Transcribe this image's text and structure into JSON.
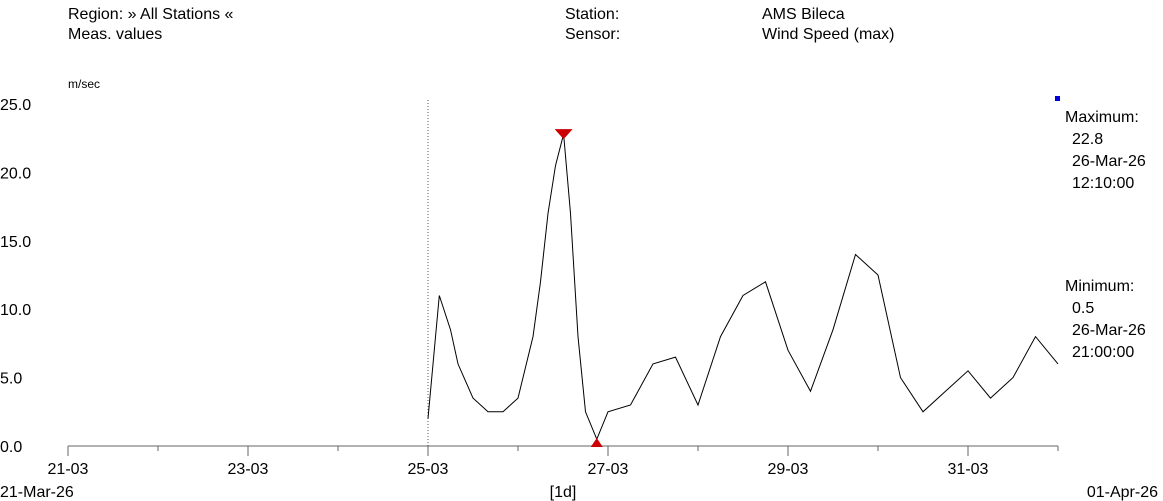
{
  "header": {
    "region_label": "Region: » All Stations «",
    "values_label": "Meas. values",
    "station_label": "Station:",
    "station_value": "AMS Bileca",
    "sensor_label": "Sensor:",
    "sensor_value": "Wind Speed (max)"
  },
  "colors": {
    "series": "#000000",
    "marker": "#cc0000",
    "legend_dot": "#0000dd",
    "axis": "#666666",
    "divider": "#555555"
  },
  "stats": {
    "max_title": "Maximum:",
    "max_value": "22.8",
    "max_date": "26-Mar-26",
    "max_time": "12:10:00",
    "min_title": "Minimum:",
    "min_value": "0.5",
    "min_date": "26-Mar-26",
    "min_time": "21:00:00"
  },
  "x_labels": {
    "start": "21-Mar-26",
    "interval": "[1d]",
    "end": "01-Apr-26"
  },
  "chart_data": {
    "type": "line",
    "ylabel": "m/sec",
    "ylim": [
      0,
      25
    ],
    "yticks": [
      "0.0",
      "5.0",
      "10.0",
      "15.0",
      "20.0",
      "25.0"
    ],
    "xlim": [
      "2026-03-21",
      "2026-04-01"
    ],
    "xticks": [
      "21-03",
      "23-03",
      "25-03",
      "27-03",
      "29-03",
      "31-03"
    ],
    "divider_date": "2026-03-25",
    "grid": false,
    "series": [
      {
        "x": [
          "2026-03-25 00:00",
          "2026-03-25 03:00",
          "2026-03-25 06:00",
          "2026-03-25 08:00",
          "2026-03-25 12:00",
          "2026-03-25 16:00",
          "2026-03-25 20:00",
          "2026-03-26 00:00",
          "2026-03-26 04:00",
          "2026-03-26 06:00",
          "2026-03-26 08:00",
          "2026-03-26 10:00",
          "2026-03-26 12:10",
          "2026-03-26 14:00",
          "2026-03-26 16:00",
          "2026-03-26 18:00",
          "2026-03-26 21:00",
          "2026-03-27 00:00",
          "2026-03-27 06:00",
          "2026-03-27 12:00",
          "2026-03-27 18:00",
          "2026-03-28 00:00",
          "2026-03-28 06:00",
          "2026-03-28 12:00",
          "2026-03-28 18:00",
          "2026-03-29 00:00",
          "2026-03-29 06:00",
          "2026-03-29 12:00",
          "2026-03-29 18:00",
          "2026-03-30 00:00",
          "2026-03-30 06:00",
          "2026-03-30 12:00",
          "2026-03-30 18:00",
          "2026-03-31 00:00",
          "2026-03-31 06:00",
          "2026-03-31 12:00",
          "2026-03-31 18:00",
          "2026-04-01 00:00"
        ],
        "values": [
          2.0,
          11.0,
          8.5,
          6.0,
          3.5,
          2.5,
          2.5,
          3.5,
          8.0,
          12.0,
          17.0,
          20.5,
          22.8,
          17.0,
          8.0,
          2.5,
          0.5,
          2.5,
          3.0,
          6.0,
          6.5,
          3.0,
          8.0,
          11.0,
          12.0,
          7.0,
          4.0,
          8.5,
          14.0,
          12.5,
          5.0,
          2.5,
          4.0,
          5.5,
          3.5,
          5.0,
          8.0,
          6.0
        ]
      }
    ]
  }
}
